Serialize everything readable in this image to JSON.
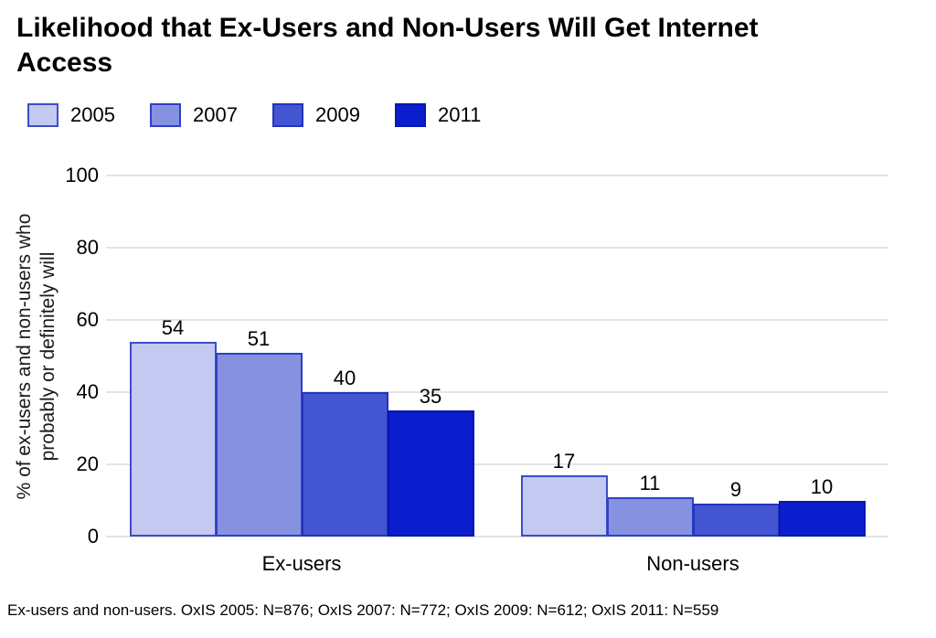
{
  "title": "Likelihood that Ex-Users and Non-Users Will Get Internet Access",
  "footnote": "Ex-users and non-users. OxIS 2005: N=876; OxIS 2007: N=772; OxIS 2009: N=612; OxIS 2011: N=559",
  "colors": {
    "background": "#ffffff",
    "gridline": "#e4e4e4",
    "text": "#000000"
  },
  "chart_data": {
    "type": "bar",
    "categories": [
      "Ex-users",
      "Non-users"
    ],
    "series": [
      {
        "name": "2005",
        "values": [
          54,
          17
        ],
        "fill": "#c3c9f0",
        "stroke": "#3c4ec9"
      },
      {
        "name": "2007",
        "values": [
          51,
          11
        ],
        "fill": "#8692e1",
        "stroke": "#2f41c6"
      },
      {
        "name": "2009",
        "values": [
          40,
          9
        ],
        "fill": "#4355d1",
        "stroke": "#2433bf"
      },
      {
        "name": "2011",
        "values": [
          35,
          10
        ],
        "fill": "#0b1ecd",
        "stroke": "#0917b2"
      }
    ],
    "ylabel": "% of ex-users and non-users who probably or definitely will",
    "ylabel_lines": [
      "% of ex-users and non-users who",
      "probably or definitely will"
    ],
    "yticks": [
      0,
      20,
      40,
      60,
      80,
      100
    ],
    "ylim": [
      0,
      100
    ],
    "grid": true,
    "legend_position": "top",
    "value_labels": true
  }
}
